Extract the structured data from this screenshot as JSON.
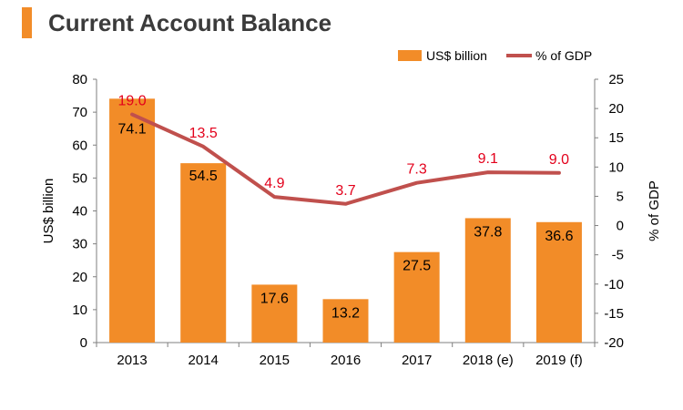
{
  "title": "Current Account Balance",
  "colors": {
    "accent": "#f28c28",
    "bar": "#f28c28",
    "line": "#c0504d",
    "line_label": "#e3001b",
    "axis": "#7f7f7f"
  },
  "chart_data": {
    "type": "bar",
    "categories": [
      "2013",
      "2014",
      "2015",
      "2016",
      "2017",
      "2018 (e)",
      "2019 (f)"
    ],
    "series": [
      {
        "name": "US$ billion",
        "type": "bar",
        "axis": "left",
        "values": [
          74.1,
          54.5,
          17.6,
          13.2,
          27.5,
          37.8,
          36.6
        ]
      },
      {
        "name": "% of GDP",
        "type": "line",
        "axis": "right",
        "values": [
          19.0,
          13.5,
          4.9,
          3.7,
          7.3,
          9.1,
          9.0
        ]
      }
    ],
    "bar_labels": [
      "74.1",
      "54.5",
      "17.6",
      "13.2",
      "27.5",
      "37.8",
      "36.6"
    ],
    "line_labels": [
      "19.0",
      "13.5",
      "4.9",
      "3.7",
      "7.3",
      "9.1",
      "9.0"
    ],
    "ylabel": "US$ billion",
    "y2label": "% of GDP",
    "ylim": [
      0,
      80
    ],
    "y2lim": [
      -20,
      25
    ],
    "yticks": [
      "0",
      "10",
      "20",
      "30",
      "40",
      "50",
      "60",
      "70",
      "80"
    ],
    "y2ticks": [
      "-20",
      "-15",
      "-10",
      "-5",
      "0",
      "5",
      "10",
      "15",
      "20",
      "25"
    ],
    "legend_position": "top-right",
    "grid": false
  }
}
